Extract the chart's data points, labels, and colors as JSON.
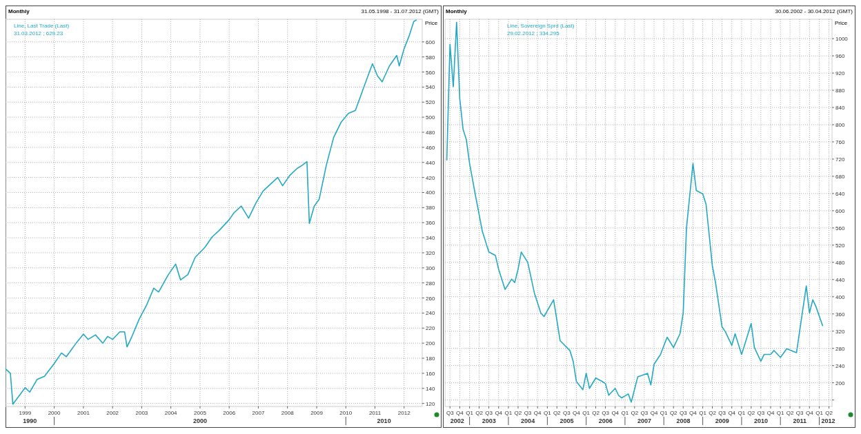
{
  "chart_data": [
    {
      "type": "line",
      "title": "Monthly",
      "subtitle": "31.05.1998 - 31.07.2012 (GMT)",
      "ylabel": "Price",
      "grid": true,
      "legend": "top left",
      "annotations": [
        "31.03.2012 ; 629.23",
        "1990",
        "2000",
        "2010"
      ],
      "xlim": [
        "1998-05-01",
        "2012-08-15"
      ],
      "ylim": [
        116,
        630
      ],
      "xticks": [
        {
          "value": "1999-01-01",
          "label": "1999"
        },
        {
          "value": "2000-01-01",
          "label": "2000"
        },
        {
          "value": "2001-01-01",
          "label": "2001"
        },
        {
          "value": "2002-01-01",
          "label": "2002"
        },
        {
          "value": "2003-01-01",
          "label": "2003"
        },
        {
          "value": "2004-01-01",
          "label": "2004"
        },
        {
          "value": "2005-01-01",
          "label": "2005"
        },
        {
          "value": "2006-01-01",
          "label": "2006"
        },
        {
          "value": "2007-01-01",
          "label": "2007"
        },
        {
          "value": "2008-01-01",
          "label": "2008"
        },
        {
          "value": "2009-01-01",
          "label": "2009"
        },
        {
          "value": "2010-01-01",
          "label": "2010"
        },
        {
          "value": "2011-01-01",
          "label": "2011"
        },
        {
          "value": "2012-01-01",
          "label": "2012"
        }
      ],
      "yticks": [
        120,
        140,
        160,
        180,
        200,
        220,
        240,
        260,
        280,
        300,
        320,
        340,
        360,
        380,
        400,
        420,
        440,
        460,
        480,
        500,
        520,
        540,
        560,
        580,
        600
      ],
      "x": [
        "1998-05",
        "1998-06",
        "1998-07",
        "1998-08",
        "1998-11",
        "1999-01",
        "1999-03",
        "1999-06",
        "1999-09",
        "2000-01",
        "2000-04",
        "2000-06",
        "2000-10",
        "2001-01",
        "2001-03",
        "2001-06",
        "2001-09",
        "2001-11",
        "2002-01",
        "2002-04",
        "2002-06",
        "2002-07",
        "2002-09",
        "2002-12",
        "2003-03",
        "2003-06",
        "2003-08",
        "2003-12",
        "2004-03",
        "2004-05",
        "2004-08",
        "2004-11",
        "2005-03",
        "2005-06",
        "2005-09",
        "2006-01",
        "2006-03",
        "2006-06",
        "2006-09",
        "2006-12",
        "2007-03",
        "2007-06",
        "2007-09",
        "2007-11",
        "2008-02",
        "2008-05",
        "2008-07",
        "2008-09",
        "2008-10",
        "2008-12",
        "2009-02",
        "2009-05",
        "2009-08",
        "2009-11",
        "2010-02",
        "2010-05",
        "2010-09",
        "2010-12",
        "2011-02",
        "2011-04",
        "2011-07",
        "2011-10",
        "2011-11",
        "2012-01",
        "2012-03",
        "2012-05",
        "2012-06"
      ],
      "series": [
        {
          "name": "Line, Last Trade (Last)",
          "color": "#22a8c4",
          "values": [
            166,
            163,
            160,
            119,
            132,
            141,
            135,
            152,
            156,
            173,
            187,
            182,
            200,
            212,
            205,
            211,
            200,
            209,
            205,
            215,
            215,
            195,
            209,
            232,
            250,
            273,
            268,
            291,
            305,
            284,
            291,
            314,
            327,
            341,
            350,
            364,
            373,
            382,
            366,
            386,
            402,
            411,
            420,
            409,
            423,
            432,
            436,
            441,
            359,
            382,
            391,
            436,
            473,
            493,
            505,
            509,
            545,
            571,
            555,
            547,
            568,
            582,
            568,
            591,
            607,
            627,
            629
          ]
        }
      ]
    },
    {
      "type": "line",
      "title": "Monthly",
      "subtitle": "30.06.2002 - 30.04.2012 (GMT)",
      "ylabel": "Price",
      "grid": true,
      "legend": "top left",
      "annotations": [
        "29.02.2012 ; 334.295",
        "2002",
        "2003",
        "2004",
        "2005",
        "2006",
        "2007",
        "2008",
        "2009",
        "2010",
        "2011",
        "2012"
      ],
      "xlim": [
        "2002-05-15",
        "2012-04-30"
      ],
      "ylim": [
        145,
        1045
      ],
      "xticks": [
        {
          "value": "2002-07-01",
          "label": "Q3"
        },
        {
          "value": "2002-10-01",
          "label": "Q4"
        },
        {
          "value": "2003-01-01",
          "label": "Q1"
        },
        {
          "value": "2003-04-01",
          "label": "Q2"
        },
        {
          "value": "2003-07-01",
          "label": "Q3"
        },
        {
          "value": "2003-10-01",
          "label": "Q4"
        },
        {
          "value": "2004-01-01",
          "label": "Q1"
        },
        {
          "value": "2004-04-01",
          "label": "Q2"
        },
        {
          "value": "2004-07-01",
          "label": "Q3"
        },
        {
          "value": "2004-10-01",
          "label": "Q4"
        },
        {
          "value": "2005-01-01",
          "label": "Q1"
        },
        {
          "value": "2005-04-01",
          "label": "Q2"
        },
        {
          "value": "2005-07-01",
          "label": "Q3"
        },
        {
          "value": "2005-10-01",
          "label": "Q4"
        },
        {
          "value": "2006-01-01",
          "label": "Q1"
        },
        {
          "value": "2006-04-01",
          "label": "Q2"
        },
        {
          "value": "2006-07-01",
          "label": "Q3"
        },
        {
          "value": "2006-10-01",
          "label": "Q4"
        },
        {
          "value": "2007-01-01",
          "label": "Q1"
        },
        {
          "value": "2007-04-01",
          "label": "Q2"
        },
        {
          "value": "2007-07-01",
          "label": "Q3"
        },
        {
          "value": "2007-10-01",
          "label": "Q4"
        },
        {
          "value": "2008-01-01",
          "label": "Q1"
        },
        {
          "value": "2008-04-01",
          "label": "Q2"
        },
        {
          "value": "2008-07-01",
          "label": "Q3"
        },
        {
          "value": "2008-10-01",
          "label": "Q4"
        },
        {
          "value": "2009-01-01",
          "label": "Q1"
        },
        {
          "value": "2009-04-01",
          "label": "Q2"
        },
        {
          "value": "2009-07-01",
          "label": "Q3"
        },
        {
          "value": "2009-10-01",
          "label": "Q4"
        },
        {
          "value": "2010-01-01",
          "label": "Q1"
        },
        {
          "value": "2010-04-01",
          "label": "Q2"
        },
        {
          "value": "2010-07-01",
          "label": "Q3"
        },
        {
          "value": "2010-10-01",
          "label": "Q4"
        },
        {
          "value": "2011-01-01",
          "label": "Q1"
        },
        {
          "value": "2011-04-01",
          "label": "Q2"
        },
        {
          "value": "2011-07-01",
          "label": "Q3"
        },
        {
          "value": "2011-10-01",
          "label": "Q4"
        },
        {
          "value": "2012-01-01",
          "label": "Q1"
        },
        {
          "value": "2012-04-01",
          "label": "Q2"
        }
      ],
      "yticks": [
        {
          "value": 160,
          "label": null
        },
        200,
        240,
        280,
        320,
        360,
        400,
        440,
        480,
        520,
        560,
        600,
        640,
        680,
        720,
        760,
        800,
        840,
        880,
        920,
        960,
        1000
      ],
      "x": [
        "2002-06",
        "2002-07",
        "2002-08",
        "2002-09",
        "2002-10",
        "2002-11",
        "2002-12",
        "2003-01",
        "2003-03",
        "2003-05",
        "2003-07",
        "2003-09",
        "2003-10",
        "2003-12",
        "2004-02",
        "2004-03",
        "2004-04",
        "2004-05",
        "2004-07",
        "2004-09",
        "2004-11",
        "2004-12",
        "2005-03",
        "2005-05",
        "2005-08",
        "2005-09",
        "2005-10",
        "2005-12",
        "2006-01",
        "2006-02",
        "2006-04",
        "2006-06",
        "2006-07",
        "2006-08",
        "2006-10",
        "2006-11",
        "2006-12",
        "2007-02",
        "2007-03",
        "2007-05",
        "2007-08",
        "2007-09",
        "2007-10",
        "2007-12",
        "2008-02",
        "2008-04",
        "2008-06",
        "2008-07",
        "2008-08",
        "2008-10",
        "2008-11",
        "2009-01",
        "2009-02",
        "2009-04",
        "2009-05",
        "2009-07",
        "2009-08",
        "2009-10",
        "2009-11",
        "2010-01",
        "2010-02",
        "2010-04",
        "2010-05",
        "2010-07",
        "2010-08",
        "2010-10",
        "2010-11",
        "2011-01",
        "2011-03",
        "2011-06",
        "2011-09",
        "2011-10",
        "2011-11",
        "2011-12",
        "2012-02"
      ],
      "series": [
        {
          "name": "Line, Sovereign Sprd (Last)",
          "color": "#22a8c4",
          "values": [
            718,
            987,
            888,
            1038,
            860,
            789,
            766,
            710,
            631,
            552,
            504,
            496,
            464,
            417,
            441,
            433,
            464,
            504,
            480,
            409,
            362,
            354,
            393,
            298,
            275,
            250,
            203,
            184,
            222,
            187,
            211,
            203,
            198,
            171,
            187,
            171,
            165,
            174,
            155,
            214,
            222,
            195,
            243,
            266,
            306,
            282,
            314,
            362,
            560,
            710,
            647,
            639,
            615,
            472,
            433,
            330,
            319,
            287,
            314,
            266,
            290,
            338,
            282,
            250,
            266,
            266,
            275,
            259,
            279,
            270,
            425,
            362,
            393,
            377,
            333
          ]
        }
      ]
    }
  ]
}
